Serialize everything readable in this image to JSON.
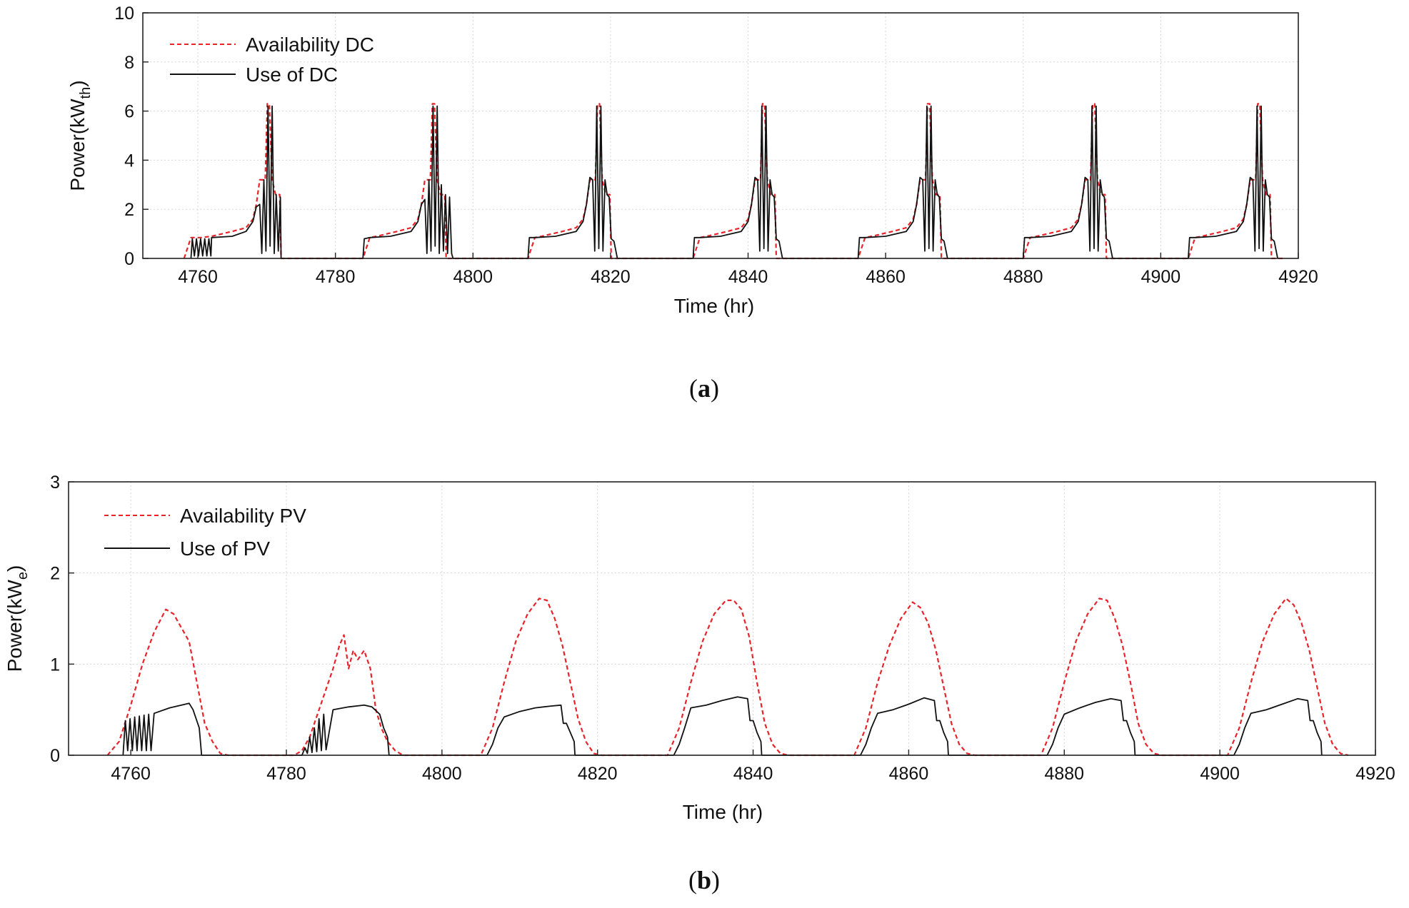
{
  "chart_data": [
    {
      "id": "a",
      "type": "line",
      "caption_label": "a",
      "xlabel": "Time (hr)",
      "ylabel": "Power(kW",
      "ylabel_sub": "th",
      "ylabel_close": ")",
      "xlim": [
        4752,
        4920
      ],
      "ylim": [
        0,
        10
      ],
      "xticks": [
        4760,
        4780,
        4800,
        4820,
        4840,
        4860,
        4880,
        4900,
        4920
      ],
      "yticks": [
        0,
        2,
        4,
        6,
        8,
        10
      ],
      "grid": true,
      "legend_position": "top-left",
      "series": [
        {
          "name": "Availability DC",
          "color": "#e8242b",
          "dash": "dashed",
          "x": [
            4758,
            4759,
            4760.5,
            4762,
            4765,
            4767,
            4768,
            4768.5,
            4769,
            4769.8,
            4770.1,
            4770.4,
            4770.8,
            4771.3,
            4771.9,
            4772.1,
            4774,
            4784,
            4785,
            4786,
            4789,
            4791,
            4792,
            4792.5,
            4793,
            4793.8,
            4794.1,
            4794.4,
            4794.8,
            4795.3,
            4795.9,
            4796.1,
            4798,
            4808,
            4809,
            4810,
            4813,
            4815,
            4816,
            4816.5,
            4817,
            4817.8,
            4818.1,
            4818.4,
            4818.8,
            4819.3,
            4819.9,
            4820.1,
            4822,
            4832,
            4833,
            4834,
            4837,
            4839,
            4840,
            4840.5,
            4841,
            4841.8,
            4842.1,
            4842.4,
            4842.8,
            4843.3,
            4843.9,
            4844.1,
            4846,
            4856,
            4857,
            4858,
            4861,
            4863,
            4864,
            4864.5,
            4865,
            4865.8,
            4866.1,
            4866.4,
            4866.8,
            4867.3,
            4867.9,
            4868.1,
            4870,
            4880,
            4881,
            4882,
            4885,
            4887,
            4888,
            4888.5,
            4889,
            4889.8,
            4890.1,
            4890.4,
            4890.8,
            4891.3,
            4891.9,
            4892.1,
            4894,
            4904,
            4905,
            4906,
            4909,
            4911,
            4912,
            4912.5,
            4913,
            4913.8,
            4914.1,
            4914.4,
            4914.8,
            4915.3,
            4915.9,
            4916.1,
            4918
          ],
          "y": [
            0,
            0.85,
            0.85,
            0.9,
            1.1,
            1.25,
            1.6,
            2.2,
            3.2,
            3.2,
            6.3,
            6.3,
            3.2,
            2.6,
            2.6,
            0,
            0,
            0,
            0.85,
            0.9,
            1.1,
            1.25,
            1.6,
            2.2,
            3.2,
            3.2,
            6.3,
            6.3,
            3.2,
            2.6,
            2.6,
            0,
            0,
            0,
            0.85,
            0.9,
            1.1,
            1.25,
            1.6,
            2.2,
            3.2,
            3.2,
            6.3,
            6.3,
            3.2,
            2.6,
            2.6,
            0,
            0,
            0,
            0.85,
            0.9,
            1.1,
            1.25,
            1.6,
            2.2,
            3.2,
            3.2,
            6.3,
            6.3,
            3.2,
            2.6,
            2.6,
            0,
            0,
            0,
            0.85,
            0.9,
            1.1,
            1.25,
            1.6,
            2.2,
            3.2,
            3.2,
            6.3,
            6.3,
            3.2,
            2.6,
            2.6,
            0,
            0,
            0,
            0.85,
            0.9,
            1.1,
            1.25,
            1.6,
            2.2,
            3.2,
            3.2,
            6.3,
            6.3,
            3.2,
            2.6,
            2.6,
            0,
            0,
            0,
            0.85,
            0.9,
            1.1,
            1.25,
            1.6,
            2.2,
            3.2,
            3.2,
            6.3,
            6.3,
            3.2,
            2.6,
            2.6,
            0,
            0
          ]
        },
        {
          "name": "Use of DC",
          "color": "#111111",
          "dash": "solid",
          "x": [
            4759,
            4759.2,
            4759.5,
            4759.8,
            4760.1,
            4760.4,
            4760.7,
            4761,
            4761.3,
            4761.6,
            4761.9,
            4762,
            4765,
            4767,
            4768,
            4768.5,
            4769,
            4769.3,
            4769.6,
            4769.9,
            4770.2,
            4770.5,
            4770.8,
            4771.1,
            4771.4,
            4771.7,
            4772,
            4772.1,
            4784,
            4784.2,
            4785,
            4788,
            4791,
            4792,
            4792.5,
            4793,
            4793.3,
            4793.6,
            4793.9,
            4794.2,
            4794.5,
            4794.8,
            4795.1,
            4795.4,
            4795.7,
            4796,
            4796.3,
            4796.6,
            4796.9,
            4797.1,
            4808,
            4808.2,
            4809,
            4812,
            4815,
            4816,
            4816.5,
            4817,
            4817.4,
            4817.7,
            4818,
            4818.3,
            4818.6,
            4818.9,
            4819.2,
            4819.5,
            4819.8,
            4820.1,
            4820.5,
            4821,
            4832,
            4832.2,
            4833,
            4836,
            4839,
            4840,
            4840.5,
            4841,
            4841.4,
            4841.7,
            4842,
            4842.3,
            4842.6,
            4842.9,
            4843.2,
            4843.5,
            4843.8,
            4844.1,
            4844.5,
            4845,
            4856,
            4856.2,
            4857,
            4860,
            4863,
            4864,
            4864.5,
            4865,
            4865.4,
            4865.7,
            4866,
            4866.3,
            4866.6,
            4866.9,
            4867.2,
            4867.5,
            4867.8,
            4868.1,
            4868.5,
            4869,
            4880,
            4880.2,
            4881,
            4884,
            4887,
            4888,
            4888.5,
            4889,
            4889.4,
            4889.7,
            4890,
            4890.3,
            4890.6,
            4890.9,
            4891.2,
            4891.5,
            4891.8,
            4892.1,
            4892.5,
            4893,
            4904,
            4904.2,
            4905,
            4908,
            4911,
            4912,
            4912.5,
            4913,
            4913.4,
            4913.7,
            4914,
            4914.3,
            4914.6,
            4914.9,
            4915.2,
            4915.5,
            4915.8,
            4916.1,
            4916.5,
            4917
          ],
          "y": [
            0,
            0.8,
            0.1,
            0.8,
            0.1,
            0.8,
            0.1,
            0.8,
            0.1,
            0.8,
            0.1,
            0.85,
            0.9,
            1.1,
            1.5,
            2.1,
            2.2,
            0.2,
            3.2,
            0.3,
            6.2,
            0.5,
            6.2,
            0.2,
            2.6,
            0.3,
            2.5,
            0,
            0,
            0.8,
            0.85,
            0.9,
            1.1,
            1.5,
            2.2,
            2.4,
            0.2,
            3.2,
            0.3,
            6.2,
            0.5,
            6.2,
            0.2,
            3.0,
            0.3,
            2.6,
            0.2,
            2.5,
            0.2,
            0,
            0,
            0.85,
            0.85,
            0.9,
            1.1,
            1.5,
            2.2,
            3.3,
            3.2,
            0.3,
            6.2,
            0.4,
            6.2,
            0.3,
            3.2,
            2.6,
            2.5,
            0.8,
            0.7,
            0,
            0,
            0.85,
            0.85,
            0.9,
            1.1,
            1.5,
            2.2,
            3.3,
            3.2,
            0.3,
            6.2,
            0.4,
            6.2,
            0.3,
            3.2,
            2.6,
            2.5,
            0.8,
            0.7,
            0,
            0,
            0.85,
            0.85,
            0.9,
            1.1,
            1.5,
            2.2,
            3.3,
            3.2,
            0.3,
            6.2,
            0.4,
            6.2,
            0.3,
            3.2,
            2.6,
            2.5,
            0.8,
            0.7,
            0,
            0,
            0.85,
            0.85,
            0.9,
            1.1,
            1.5,
            2.2,
            3.3,
            3.2,
            0.3,
            6.2,
            0.4,
            6.2,
            0.3,
            3.2,
            2.6,
            2.5,
            0.8,
            0.7,
            0,
            0,
            0.85,
            0.85,
            0.9,
            1.1,
            1.5,
            2.2,
            3.3,
            3.2,
            0.3,
            6.2,
            0.4,
            6.2,
            0.3,
            3.2,
            2.6,
            2.5,
            0.8,
            0.7,
            0
          ]
        }
      ]
    },
    {
      "id": "b",
      "type": "line",
      "caption_label": "b",
      "xlabel": "Time (hr)",
      "ylabel": "Power(kW",
      "ylabel_sub": "e",
      "ylabel_close": ")",
      "xlim": [
        4752,
        4920
      ],
      "ylim": [
        0,
        3
      ],
      "xticks": [
        4760,
        4780,
        4800,
        4820,
        4840,
        4860,
        4880,
        4900,
        4920
      ],
      "yticks": [
        0,
        1,
        2,
        3
      ],
      "grid": true,
      "legend_position": "top-left",
      "series": [
        {
          "name": "Availability PV",
          "color": "#e8242b",
          "dash": "dashed",
          "x": [
            4757,
            4758.5,
            4760,
            4761.5,
            4763,
            4764.5,
            4765.5,
            4766.5,
            4767.5,
            4768.5,
            4769.5,
            4770.5,
            4771.5,
            4772.5,
            4781,
            4782,
            4783,
            4784,
            4785,
            4786,
            4786.8,
            4787.4,
            4788,
            4788.6,
            4789.2,
            4790,
            4790.8,
            4791.5,
            4792.2,
            4793,
            4794,
            4795,
            4796,
            4805,
            4806.5,
            4808,
            4809.5,
            4811,
            4812.5,
            4813.5,
            4814.5,
            4815.5,
            4816.5,
            4817.5,
            4818.5,
            4819.5,
            4820.5,
            4829,
            4830.5,
            4832,
            4833.5,
            4835,
            4836.5,
            4837.5,
            4838.5,
            4839.5,
            4840.5,
            4841.5,
            4842.5,
            4843.5,
            4844.5,
            4853,
            4854.5,
            4856,
            4857.5,
            4859,
            4860.5,
            4861.5,
            4862.5,
            4863.5,
            4864.5,
            4865.5,
            4866.5,
            4867.5,
            4868.5,
            4877,
            4878.5,
            4880,
            4881.5,
            4883,
            4884.5,
            4885.5,
            4886.5,
            4887.5,
            4888.5,
            4889.5,
            4890.5,
            4891.5,
            4892.5,
            4901,
            4902.5,
            4904,
            4905.5,
            4907,
            4908.5,
            4909.5,
            4910.5,
            4911.5,
            4912.5,
            4913.5,
            4914.5,
            4915.5,
            4916.5
          ],
          "y": [
            0,
            0.15,
            0.55,
            1.0,
            1.35,
            1.6,
            1.55,
            1.4,
            1.25,
            0.8,
            0.35,
            0.15,
            0.02,
            0,
            0,
            0.05,
            0.2,
            0.45,
            0.7,
            0.95,
            1.2,
            1.32,
            0.95,
            1.15,
            1.05,
            1.15,
            0.95,
            0.5,
            0.3,
            0.15,
            0.05,
            0,
            0,
            0,
            0.3,
            0.8,
            1.25,
            1.55,
            1.72,
            1.7,
            1.5,
            1.2,
            0.8,
            0.4,
            0.15,
            0.02,
            0,
            0,
            0.3,
            0.8,
            1.25,
            1.55,
            1.7,
            1.7,
            1.6,
            1.3,
            0.8,
            0.35,
            0.12,
            0.02,
            0,
            0,
            0.3,
            0.8,
            1.2,
            1.5,
            1.68,
            1.62,
            1.45,
            1.15,
            0.75,
            0.35,
            0.12,
            0.02,
            0,
            0,
            0.3,
            0.8,
            1.25,
            1.55,
            1.72,
            1.7,
            1.5,
            1.2,
            0.8,
            0.35,
            0.12,
            0.02,
            0,
            0,
            0.3,
            0.8,
            1.25,
            1.55,
            1.72,
            1.65,
            1.45,
            1.15,
            0.75,
            0.35,
            0.12,
            0.02,
            0
          ]
        },
        {
          "name": "Use of PV",
          "color": "#111111",
          "dash": "solid",
          "x": [
            4759,
            4759.3,
            4759.6,
            4759.9,
            4760.2,
            4760.5,
            4760.8,
            4761.1,
            4761.4,
            4761.7,
            4762,
            4762.3,
            4762.6,
            4763,
            4765,
            4767,
            4767.5,
            4768,
            4768.8,
            4769.1,
            4782,
            4782.4,
            4782.7,
            4783,
            4783.3,
            4783.6,
            4783.9,
            4784.2,
            4784.5,
            4784.8,
            4785.1,
            4786,
            4788,
            4790,
            4791,
            4792,
            4792.5,
            4793,
            4793.2,
            4805.8,
            4806.5,
            4807.2,
            4808,
            4810,
            4812,
            4814,
            4815.3,
            4815.6,
            4816,
            4816.5,
            4817,
            4817.1,
            4829.8,
            4830.5,
            4831.2,
            4832,
            4834,
            4836,
            4838,
            4839.3,
            4839.6,
            4840,
            4840.5,
            4841,
            4841.1,
            4853.8,
            4854.5,
            4855.2,
            4856,
            4858,
            4860,
            4862,
            4863.3,
            4863.6,
            4864,
            4864.5,
            4865,
            4865.1,
            4877.8,
            4878.5,
            4879.2,
            4880,
            4882,
            4884,
            4886,
            4887.3,
            4887.6,
            4888,
            4888.5,
            4889,
            4889.1,
            4901.8,
            4902.5,
            4903.2,
            4904,
            4906,
            4908,
            4910,
            4911.3,
            4911.6,
            4912,
            4912.5,
            4913,
            4913.1
          ],
          "y": [
            0,
            0.38,
            0.05,
            0.4,
            0.05,
            0.42,
            0.05,
            0.43,
            0.05,
            0.44,
            0.05,
            0.45,
            0.05,
            0.46,
            0.52,
            0.56,
            0.57,
            0.5,
            0.3,
            0,
            0,
            0.08,
            0.02,
            0.2,
            0.03,
            0.3,
            0.04,
            0.4,
            0.05,
            0.45,
            0.06,
            0.5,
            0.53,
            0.55,
            0.53,
            0.45,
            0.3,
            0.2,
            0,
            0,
            0.12,
            0.3,
            0.42,
            0.48,
            0.52,
            0.54,
            0.55,
            0.35,
            0.35,
            0.25,
            0.15,
            0,
            0,
            0.12,
            0.3,
            0.52,
            0.55,
            0.6,
            0.64,
            0.62,
            0.38,
            0.38,
            0.25,
            0.15,
            0,
            0,
            0.12,
            0.3,
            0.46,
            0.5,
            0.56,
            0.63,
            0.6,
            0.38,
            0.38,
            0.25,
            0.15,
            0,
            0,
            0.12,
            0.3,
            0.45,
            0.52,
            0.58,
            0.62,
            0.6,
            0.38,
            0.38,
            0.25,
            0.15,
            0,
            0,
            0.12,
            0.3,
            0.46,
            0.5,
            0.56,
            0.62,
            0.6,
            0.38,
            0.38,
            0.25,
            0.15,
            0
          ]
        }
      ]
    }
  ]
}
